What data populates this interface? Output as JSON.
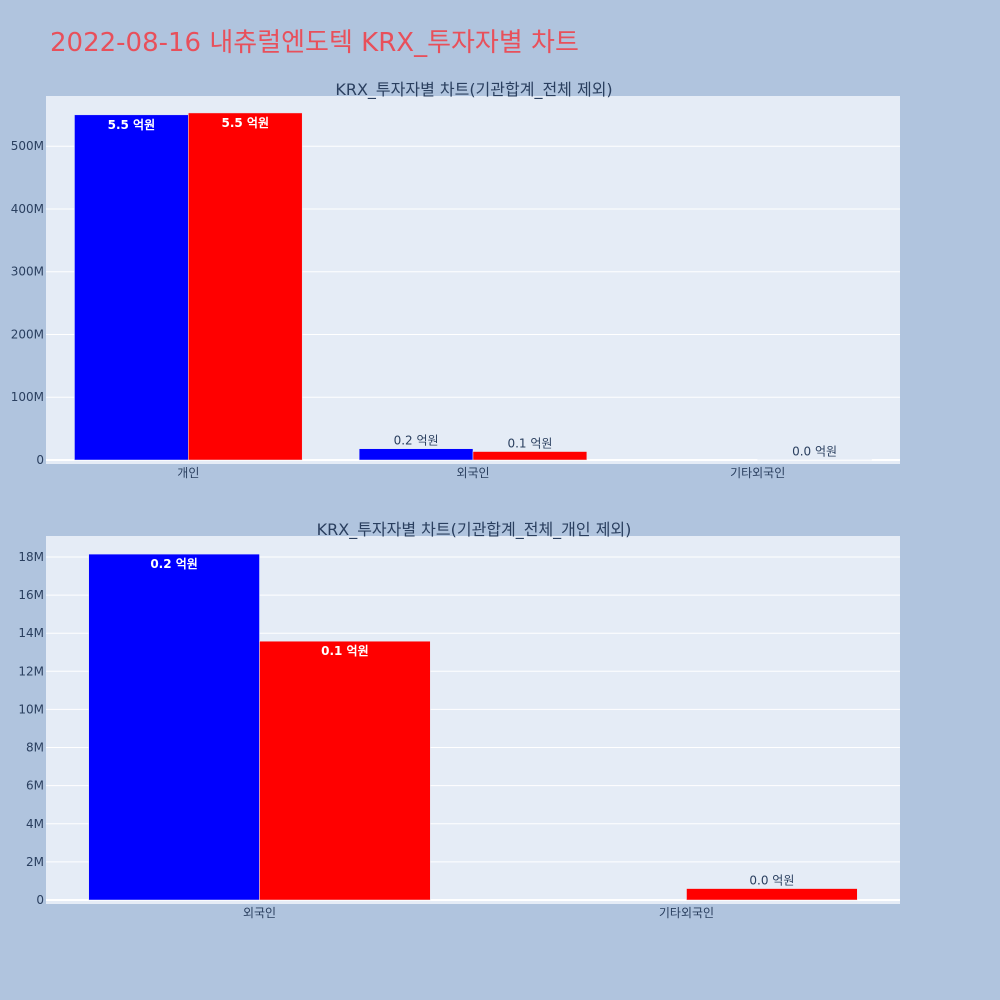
{
  "title": "2022-08-16 내츄럴엔도텍 KRX_투자자별 차트",
  "colors": {
    "buy": "#0000ff",
    "sell": "#ff0000",
    "plot_bg": "#e5ecf6",
    "page_bg": "#b0c4de",
    "title": "#e8505b"
  },
  "chart_data": [
    {
      "type": "bar",
      "title": "KRX_투자자별 차트(기관합계_전체 제외)",
      "categories": [
        "개인",
        "외국인",
        "기타외국인"
      ],
      "series": [
        {
          "values": [
            550000000,
            18000000,
            0
          ],
          "labels": [
            "5.5 억원",
            "0.2 억원",
            ""
          ]
        },
        {
          "values": [
            553000000,
            13500000,
            600000
          ],
          "labels": [
            "5.5 억원",
            "0.1 억원",
            "0.0 억원"
          ]
        }
      ],
      "ylim": [
        0,
        580000000
      ],
      "yticks": [
        0,
        100000000,
        200000000,
        300000000,
        400000000,
        500000000
      ],
      "ytick_labels": [
        "0",
        "100M",
        "200M",
        "300M",
        "400M",
        "500M"
      ],
      "grid": true
    },
    {
      "type": "bar",
      "title": "KRX_투자자별 차트(기관합계_전체_개인 제외)",
      "categories": [
        "외국인",
        "기타외국인"
      ],
      "series": [
        {
          "values": [
            18150000,
            0
          ],
          "labels": [
            "0.2 억원",
            ""
          ]
        },
        {
          "values": [
            13580000,
            600000
          ],
          "labels": [
            "0.1 억원",
            "0.0 억원"
          ]
        }
      ],
      "ylim": [
        0,
        19100000
      ],
      "yticks": [
        0,
        2000000,
        4000000,
        6000000,
        8000000,
        10000000,
        12000000,
        14000000,
        16000000,
        18000000
      ],
      "ytick_labels": [
        "0",
        "2M",
        "4M",
        "6M",
        "8M",
        "10M",
        "12M",
        "14M",
        "16M",
        "18M"
      ],
      "grid": true
    }
  ]
}
